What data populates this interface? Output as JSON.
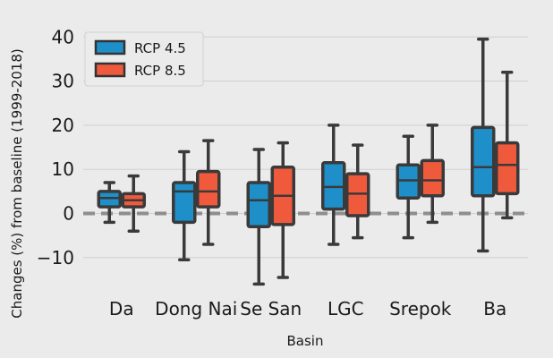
{
  "chart_data": {
    "type": "box",
    "categories": [
      "Da",
      "Dong Nai",
      "Se San",
      "LGC",
      "Srepok",
      "Ba"
    ],
    "xlabel": "Basin",
    "ylabel": "Changes (%) from baseline (1999-2018)",
    "ylim": [
      -16,
      43
    ],
    "yticks": [
      -10,
      0,
      10,
      20,
      30,
      40
    ],
    "grid": true,
    "legend_position": "top-left",
    "reference_line": 0,
    "series": [
      {
        "name": "RCP 4.5",
        "color": "#1f8fca",
        "boxes": [
          {
            "min": -2.0,
            "q1": 1.5,
            "median": 3.5,
            "q3": 5.0,
            "max": 7.0
          },
          {
            "min": -10.5,
            "q1": -2.0,
            "median": 5.0,
            "q3": 7.0,
            "max": 14.0
          },
          {
            "min": -16.0,
            "q1": -3.0,
            "median": 3.0,
            "q3": 7.0,
            "max": 14.5
          },
          {
            "min": -7.0,
            "q1": 1.0,
            "median": 6.0,
            "q3": 11.5,
            "max": 20.0
          },
          {
            "min": -5.5,
            "q1": 3.5,
            "median": 7.5,
            "q3": 11.0,
            "max": 17.5
          },
          {
            "min": -8.5,
            "q1": 4.0,
            "median": 10.5,
            "q3": 19.5,
            "max": 39.5
          }
        ]
      },
      {
        "name": "RCP 8.5",
        "color": "#f05a3c",
        "boxes": [
          {
            "min": -4.0,
            "q1": 1.5,
            "median": 3.0,
            "q3": 4.5,
            "max": 8.5
          },
          {
            "min": -7.0,
            "q1": 1.5,
            "median": 5.0,
            "q3": 9.5,
            "max": 16.5
          },
          {
            "min": -14.5,
            "q1": -2.5,
            "median": 4.0,
            "q3": 10.5,
            "max": 16.0
          },
          {
            "min": -5.5,
            "q1": -0.5,
            "median": 4.5,
            "q3": 9.0,
            "max": 15.5
          },
          {
            "min": -2.0,
            "q1": 4.0,
            "median": 7.5,
            "q3": 12.0,
            "max": 20.0
          },
          {
            "min": -1.0,
            "q1": 4.5,
            "median": 11.0,
            "q3": 16.0,
            "max": 32.0
          }
        ]
      }
    ]
  }
}
